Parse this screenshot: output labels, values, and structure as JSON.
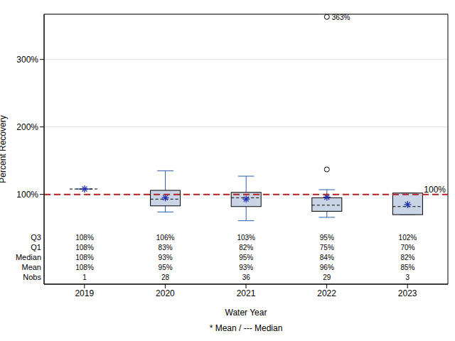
{
  "chart_data": {
    "type": "box",
    "x_label": "Water Year",
    "y_label": "Percent Recovery",
    "footnote": "* Mean / --- Median",
    "categories": [
      "2019",
      "2020",
      "2021",
      "2022",
      "2023"
    ],
    "color": "#c9d4e6",
    "ylim": [
      -33,
      367
    ],
    "yticks": [
      {
        "value": 100,
        "label": "100%"
      },
      {
        "value": 200,
        "label": "200%"
      },
      {
        "value": 300,
        "label": "300%"
      }
    ],
    "grid": true,
    "reference_line": {
      "value": 100,
      "label": "100%"
    },
    "q1": [
      108,
      83,
      82,
      75,
      70
    ],
    "q3": [
      108,
      106,
      103,
      95,
      102
    ],
    "median": [
      108,
      93,
      95,
      84,
      82
    ],
    "mean": [
      108,
      95,
      93,
      96,
      85
    ],
    "whisker_low": [
      108,
      74,
      61,
      66,
      70
    ],
    "whisker_high": [
      108,
      135,
      127,
      107,
      102
    ],
    "outliers": [
      [],
      [],
      [],
      [
        137,
        363
      ],
      []
    ],
    "outlier_labels": [
      [],
      [],
      [],
      [
        null,
        "363%"
      ],
      []
    ],
    "stats_table": {
      "rows": [
        {
          "label": "Q3",
          "cells": [
            "108%",
            "106%",
            "103%",
            "95%",
            "102%"
          ]
        },
        {
          "label": "Q1",
          "cells": [
            "108%",
            "83%",
            "82%",
            "75%",
            "70%"
          ]
        },
        {
          "label": "Median",
          "cells": [
            "108%",
            "93%",
            "95%",
            "84%",
            "82%"
          ]
        },
        {
          "label": "Mean",
          "cells": [
            "108%",
            "95%",
            "93%",
            "96%",
            "85%"
          ]
        },
        {
          "label": "Nobs",
          "cells": [
            "1",
            "28",
            "36",
            "29",
            "3"
          ]
        }
      ]
    }
  }
}
